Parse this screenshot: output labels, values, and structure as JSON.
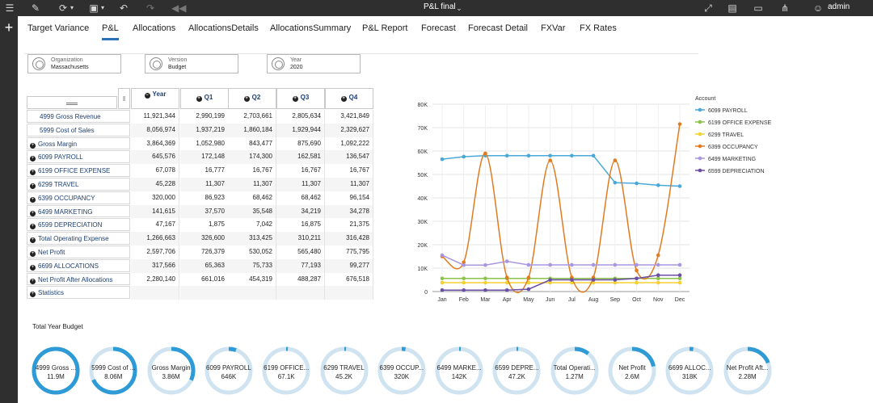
{
  "app": {
    "title": "P&L final",
    "user": "admin"
  },
  "tabs": [
    {
      "label": "Target Variance",
      "active": false
    },
    {
      "label": "P&L",
      "active": true
    },
    {
      "label": "Allocations",
      "active": false
    },
    {
      "label": "AllocationsDetails",
      "active": false
    },
    {
      "label": "AllocationsSummary",
      "active": false
    },
    {
      "label": "P&L Report",
      "active": false
    },
    {
      "label": "Forecast",
      "active": false
    },
    {
      "label": "Forecast Detail",
      "active": false
    },
    {
      "label": "FXVar",
      "active": false
    },
    {
      "label": "FX Rates",
      "active": false
    }
  ],
  "pov": [
    {
      "label": "Organization",
      "value": "Massachusetts"
    },
    {
      "label": "Version",
      "value": "Budget"
    },
    {
      "label": "Year",
      "value": "2020"
    }
  ],
  "grid": {
    "columns": [
      "Year",
      "Q1",
      "Q2",
      "Q3",
      "Q4"
    ],
    "rows": [
      {
        "label": "4999 Gross Revenue",
        "expandable": false,
        "values": [
          "11,921,344",
          "2,990,199",
          "2,703,661",
          "2,805,634",
          "3,421,849"
        ]
      },
      {
        "label": "5999 Cost of Sales",
        "expandable": false,
        "values": [
          "8,056,974",
          "1,937,219",
          "1,860,184",
          "1,929,944",
          "2,329,627"
        ]
      },
      {
        "label": "Gross Margin",
        "expandable": true,
        "values": [
          "3,864,369",
          "1,052,980",
          "843,477",
          "875,690",
          "1,092,222"
        ]
      },
      {
        "label": "6099 PAYROLL",
        "expandable": true,
        "values": [
          "645,576",
          "172,148",
          "174,300",
          "162,581",
          "136,547"
        ]
      },
      {
        "label": "6199 OFFICE EXPENSE",
        "expandable": true,
        "values": [
          "67,078",
          "16,777",
          "16,767",
          "16,767",
          "16,767"
        ]
      },
      {
        "label": "6299 TRAVEL",
        "expandable": true,
        "values": [
          "45,228",
          "11,307",
          "11,307",
          "11,307",
          "11,307"
        ]
      },
      {
        "label": "6399 OCCUPANCY",
        "expandable": true,
        "values": [
          "320,000",
          "86,923",
          "68,462",
          "68,462",
          "96,154"
        ]
      },
      {
        "label": "6499 MARKETING",
        "expandable": true,
        "values": [
          "141,615",
          "37,570",
          "35,548",
          "34,219",
          "34,278"
        ]
      },
      {
        "label": "6599 DEPRECIATION",
        "expandable": true,
        "values": [
          "47,167",
          "1,875",
          "7,042",
          "16,875",
          "21,375"
        ]
      },
      {
        "label": "Total Operating Expense",
        "expandable": true,
        "values": [
          "1,266,663",
          "326,600",
          "313,425",
          "310,211",
          "316,428"
        ]
      },
      {
        "label": "Net Profit",
        "expandable": true,
        "values": [
          "2,597,706",
          "726,379",
          "530,052",
          "565,480",
          "775,795"
        ]
      },
      {
        "label": "6699 ALLOCATIONS",
        "expandable": true,
        "values": [
          "317,566",
          "65,363",
          "75,733",
          "77,193",
          "99,277"
        ]
      },
      {
        "label": "Net Profit After Allocations",
        "expandable": true,
        "values": [
          "2,280,140",
          "661,016",
          "454,319",
          "488,287",
          "676,518"
        ]
      },
      {
        "label": "Statistics",
        "expandable": true,
        "values": [
          "",
          "",
          "",
          "",
          ""
        ]
      }
    ]
  },
  "chart_data": {
    "type": "line",
    "legend_title": "Account",
    "legend_position": "right",
    "x": [
      "Jan",
      "Feb",
      "Mar",
      "Apr",
      "May",
      "Jun",
      "Jul",
      "Aug",
      "Sep",
      "Oct",
      "Nov",
      "Dec"
    ],
    "ylim": [
      0,
      80000
    ],
    "yticks": [
      "0",
      "10K",
      "20K",
      "30K",
      "40K",
      "50K",
      "60K",
      "70K",
      "80K"
    ],
    "grid": true,
    "series": [
      {
        "name": "6099 PAYROLL",
        "color": "#4aa8d8",
        "smooth": false,
        "values": [
          56500,
          57600,
          58000,
          58000,
          58000,
          58000,
          58000,
          58000,
          46500,
          46200,
          45400,
          45000
        ]
      },
      {
        "name": "6199 OFFICE EXPENSE",
        "color": "#8bc34a",
        "smooth": false,
        "values": [
          5600,
          5600,
          5600,
          5600,
          5600,
          5600,
          5600,
          5600,
          5600,
          5600,
          5600,
          5600
        ]
      },
      {
        "name": "6299 TRAVEL",
        "color": "#f5d033",
        "smooth": false,
        "values": [
          3800,
          3800,
          3800,
          3800,
          3800,
          3800,
          3800,
          3800,
          3800,
          3800,
          3800,
          3800
        ]
      },
      {
        "name": "6399 OCCUPANCY",
        "color": "#e07b1f",
        "smooth": true,
        "values": [
          15000,
          12500,
          59000,
          6000,
          6000,
          56000,
          6000,
          6000,
          56000,
          9000,
          15500,
          71500
        ]
      },
      {
        "name": "6499 MARKETING",
        "color": "#a996e0",
        "smooth": false,
        "values": [
          15500,
          11300,
          11300,
          12900,
          11400,
          11400,
          11400,
          11400,
          11400,
          11400,
          11400,
          11400
        ]
      },
      {
        "name": "6599 DEPRECIATION",
        "color": "#6b4ea6",
        "smooth": false,
        "values": [
          600,
          600,
          600,
          600,
          1000,
          5000,
          5000,
          5000,
          5000,
          5600,
          7000,
          7000
        ]
      }
    ]
  },
  "summary": {
    "title": "Total Year Budget",
    "items": [
      {
        "label": "4999 Gross ...",
        "value": "11.9M",
        "fraction": 1.0
      },
      {
        "label": "5999 Cost of ...",
        "value": "8.06M",
        "fraction": 0.68
      },
      {
        "label": "Gross Margin",
        "value": "3.86M",
        "fraction": 0.32
      },
      {
        "label": "6099 PAYROLL",
        "value": "646K",
        "fraction": 0.054
      },
      {
        "label": "6199 OFFICE...",
        "value": "67.1K",
        "fraction": 0.006
      },
      {
        "label": "6299 TRAVEL",
        "value": "45.2K",
        "fraction": 0.004
      },
      {
        "label": "6399 OCCUP...",
        "value": "320K",
        "fraction": 0.027
      },
      {
        "label": "6499 MARKE...",
        "value": "142K",
        "fraction": 0.012
      },
      {
        "label": "6599 DEPRE...",
        "value": "47.2K",
        "fraction": 0.004
      },
      {
        "label": "Total Operati...",
        "value": "1.27M",
        "fraction": 0.106
      },
      {
        "label": "Net Profit",
        "value": "2.6M",
        "fraction": 0.218
      },
      {
        "label": "6699 ALLOC...",
        "value": "318K",
        "fraction": 0.027
      },
      {
        "label": "Net Profit Aft...",
        "value": "2.28M",
        "fraction": 0.191
      }
    ]
  },
  "colors": {
    "accent": "#2f6fb5",
    "donut_track": "#cfe3f0",
    "donut_fill": "#2e9ad6"
  },
  "icons": [
    "sidebar-toggle-icon",
    "edit-icon",
    "refresh-icon",
    "save-icon",
    "undo-icon",
    "redo-icon",
    "rewind-icon",
    "expand-icon",
    "present-icon",
    "comment-icon",
    "share-icon",
    "user-icon",
    "plus-icon"
  ]
}
